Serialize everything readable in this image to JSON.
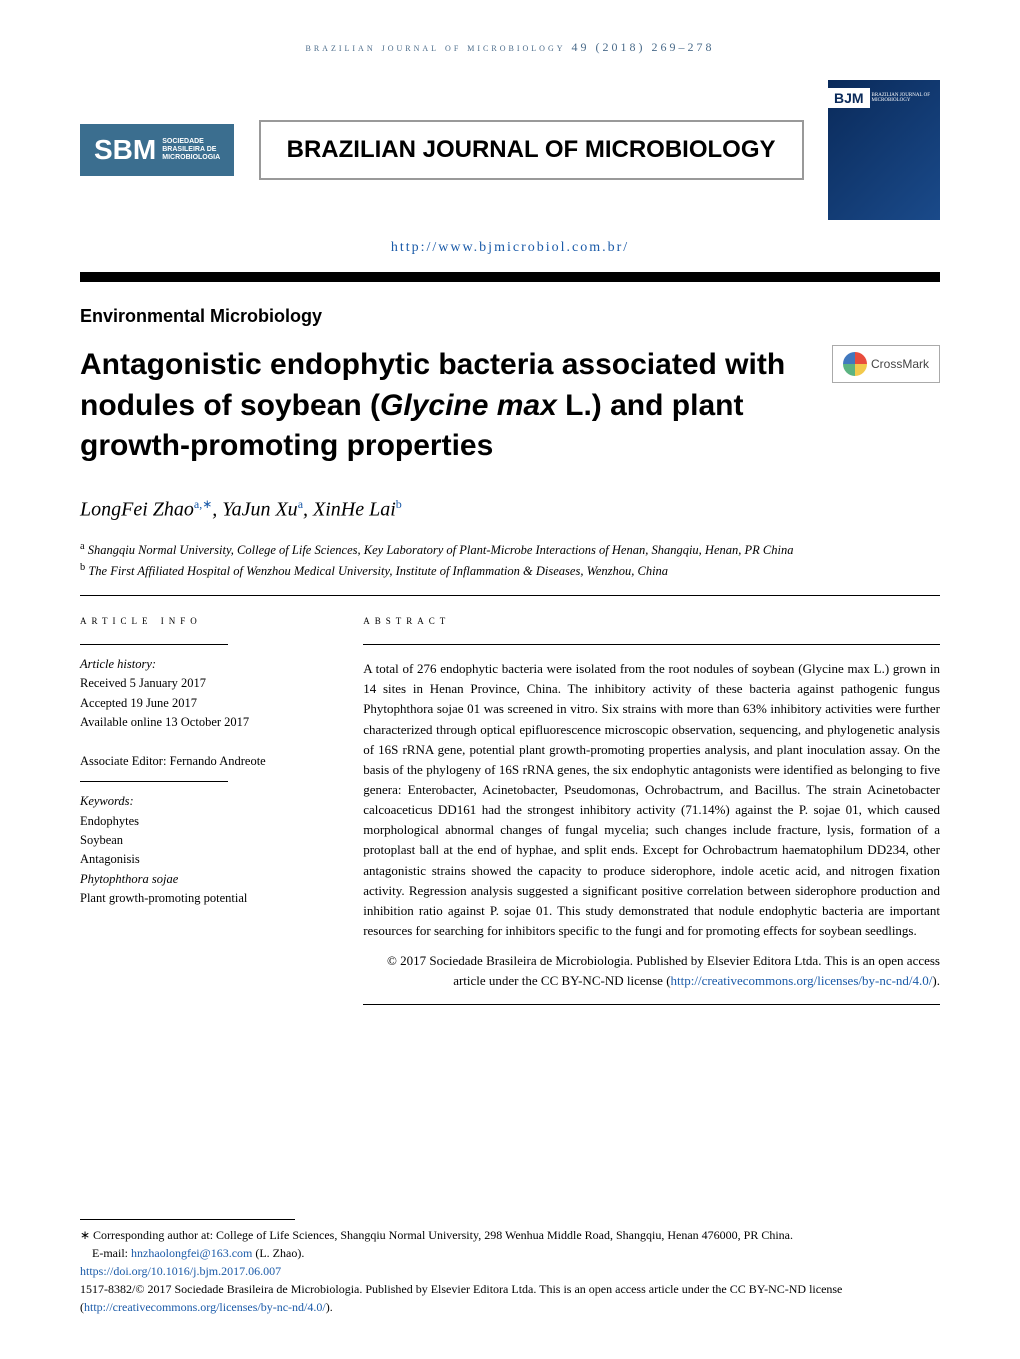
{
  "citation": "brazilian journal of microbiology 49 (2018) 269–278",
  "publisher_logo": {
    "big": "SBM",
    "line1": "SOCIEDADE",
    "line2": "BRASILEIRA DE",
    "line3": "MICROBIOLOGIA"
  },
  "journal_title": "BRAZILIAN JOURNAL OF MICROBIOLOGY",
  "journal_url": "http://www.bjmicrobiol.com.br/",
  "cover_label": "BJM",
  "cover_sub": "BRAZILIAN JOURNAL OF MICROBIOLOGY",
  "section": "Environmental Microbiology",
  "crossmark_label": "CrossMark",
  "title_pre": "Antagonistic endophytic bacteria associated with nodules of soybean (",
  "title_em": "Glycine max",
  "title_post": " L.) and plant growth-promoting properties",
  "authors_html_parts": {
    "a1_name": "LongFei Zhao",
    "a1_sup": "a,∗",
    "a2_name": "YaJun Xu",
    "a2_sup": "a",
    "a3_name": "XinHe Lai",
    "a3_sup": "b"
  },
  "affiliations": {
    "a": "Shangqiu Normal University, College of Life Sciences, Key Laboratory of Plant-Microbe Interactions of Henan, Shangqiu, Henan, PR China",
    "b": "The First Affiliated Hospital of Wenzhou Medical University, Institute of Inflammation & Diseases, Wenzhou, China"
  },
  "info_heading": "article info",
  "abstract_heading": "abstract",
  "history_label": "Article history:",
  "history": {
    "received": "Received 5 January 2017",
    "accepted": "Accepted 19 June 2017",
    "online": "Available online 13 October 2017"
  },
  "editor": "Associate Editor: Fernando Andreote",
  "keywords_label": "Keywords:",
  "keywords": [
    "Endophytes",
    "Soybean",
    "Antagonisis",
    "Phytophthora sojae",
    "Plant growth-promoting potential"
  ],
  "abstract": "A total of 276 endophytic bacteria were isolated from the root nodules of soybean (Glycine max L.) grown in 14 sites in Henan Province, China. The inhibitory activity of these bacteria against pathogenic fungus Phytophthora sojae 01 was screened in vitro. Six strains with more than 63% inhibitory activities were further characterized through optical epifluorescence microscopic observation, sequencing, and phylogenetic analysis of 16S rRNA gene, potential plant growth-promoting properties analysis, and plant inoculation assay. On the basis of the phylogeny of 16S rRNA genes, the six endophytic antagonists were identified as belonging to five genera: Enterobacter, Acinetobacter, Pseudomonas, Ochrobactrum, and Bacillus. The strain Acinetobacter calcoaceticus DD161 had the strongest inhibitory activity (71.14%) against the P. sojae 01, which caused morphological abnormal changes of fungal mycelia; such changes include fracture, lysis, formation of a protoplast ball at the end of hyphae, and split ends. Except for Ochrobactrum haematophilum DD234, other antagonistic strains showed the capacity to produce siderophore, indole acetic acid, and nitrogen fixation activity. Regression analysis suggested a significant positive correlation between siderophore production and inhibition ratio against P. sojae 01. This study demonstrated that nodule endophytic bacteria are important resources for searching for inhibitors specific to the fungi and for promoting effects for soybean seedlings.",
  "copyright_line": "© 2017 Sociedade Brasileira de Microbiologia. Published by Elsevier Editora Ltda. This is an open access article under the CC BY-NC-ND license (",
  "license_url_text": "http://creativecommons.org/licenses/by-nc-nd/4.0/",
  "license_close": ").",
  "footer": {
    "corresponding": "∗ Corresponding author at: College of Life Sciences, Shangqiu Normal University, 298 Wenhua Middle Road, Shangqiu, Henan 476000, PR China.",
    "email_label": "E-mail: ",
    "email": "hnzhaolongfei@163.com",
    "email_suffix": " (L. Zhao).",
    "doi": "https://doi.org/10.1016/j.bjm.2017.06.007",
    "issn_line": "1517-8382/© 2017 Sociedade Brasileira de Microbiologia. Published by Elsevier Editora Ltda. This is an open access article under the CC BY-NC-ND license (",
    "license2": "http://creativecommons.org/licenses/by-nc-nd/4.0/",
    "close2": ")."
  }
}
